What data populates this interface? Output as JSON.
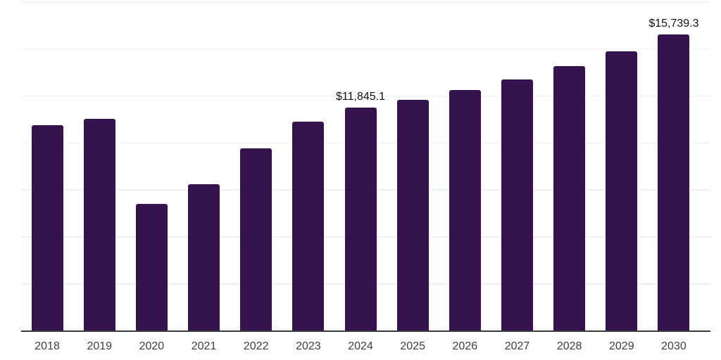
{
  "chart_data": {
    "type": "bar",
    "title": "",
    "xlabel": "",
    "ylabel": "",
    "categories": [
      "2018",
      "2019",
      "2020",
      "2021",
      "2022",
      "2023",
      "2024",
      "2025",
      "2026",
      "2027",
      "2028",
      "2029",
      "2030"
    ],
    "values": [
      10920,
      11260,
      6750,
      7790,
      9690,
      11110,
      11845.1,
      12270,
      12790,
      13350,
      14050,
      14840,
      15739.3
    ],
    "data_labels": [
      "",
      "",
      "",
      "",
      "",
      "",
      "$11,845.1",
      "",
      "",
      "",
      "",
      "",
      "$15,739.3"
    ],
    "ylim": [
      0,
      17500
    ],
    "grid_step": 2500,
    "grid": "horizontal-only",
    "legend": "none",
    "colors": {
      "bar": "#36124e",
      "gridline": "#f0f0f2",
      "axis_line": "#3a3a3a",
      "tick_label": "#3d3d3d",
      "data_label": "#111111",
      "background": "#ffffff"
    }
  }
}
